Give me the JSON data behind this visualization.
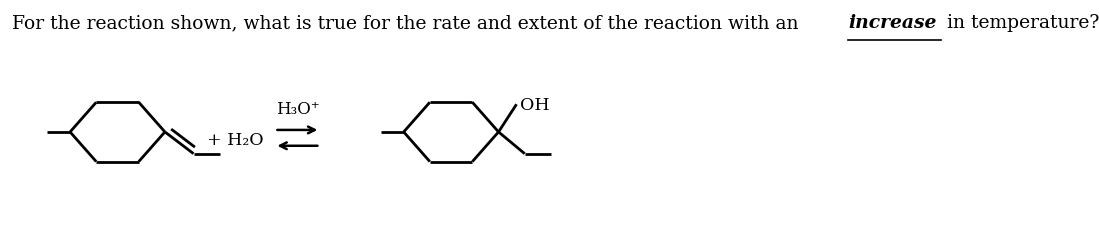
{
  "title_pre": "For the reaction shown, what is true for the rate and extent of the reaction with an ",
  "title_emph": "increase",
  "title_post": " in temperature?",
  "bg_color": "#ffffff",
  "line_color": "#000000",
  "lw": 2.0,
  "title_fontsize": 13.5,
  "chem_label_h3o": "H₃O⁺",
  "chem_label_h2o": "+ H₂O",
  "chem_label_oh": "OH"
}
